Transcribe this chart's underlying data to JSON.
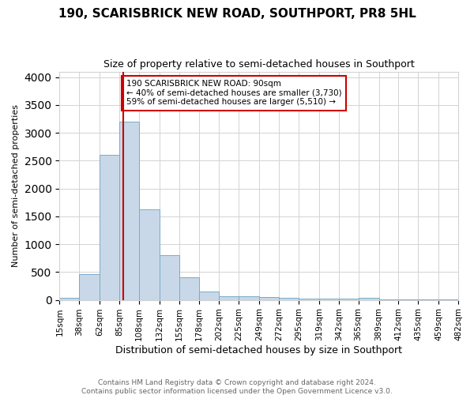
{
  "title": "190, SCARISBRICK NEW ROAD, SOUTHPORT, PR8 5HL",
  "subtitle": "Size of property relative to semi-detached houses in Southport",
  "xlabel": "Distribution of semi-detached houses by size in Southport",
  "ylabel": "Number of semi-detached properties",
  "footer1": "Contains HM Land Registry data © Crown copyright and database right 2024.",
  "footer2": "Contains public sector information licensed under the Open Government Licence v3.0.",
  "annotation_line1": "190 SCARISBRICK NEW ROAD: 90sqm",
  "annotation_line2": "← 40% of semi-detached houses are smaller (3,730)",
  "annotation_line3": "59% of semi-detached houses are larger (5,510) →",
  "property_size": 90,
  "bin_edges": [
    15,
    38,
    62,
    85,
    108,
    132,
    155,
    178,
    202,
    225,
    249,
    272,
    295,
    319,
    342,
    365,
    389,
    412,
    435,
    459,
    482
  ],
  "bin_labels": [
    "15sqm",
    "38sqm",
    "62sqm",
    "85sqm",
    "108sqm",
    "132sqm",
    "155sqm",
    "178sqm",
    "202sqm",
    "225sqm",
    "249sqm",
    "272sqm",
    "295sqm",
    "319sqm",
    "342sqm",
    "365sqm",
    "389sqm",
    "412sqm",
    "435sqm",
    "459sqm",
    "482sqm"
  ],
  "counts": [
    30,
    460,
    2600,
    3200,
    1620,
    800,
    400,
    155,
    70,
    65,
    50,
    30,
    28,
    20,
    20,
    35,
    10,
    4,
    3,
    2
  ],
  "bar_color": "#c8d8e8",
  "bar_edge_color": "#7aaac8",
  "red_line_color": "#cc0000",
  "annotation_box_edgecolor": "#cc0000",
  "ylim": [
    0,
    4100
  ],
  "yticks": [
    0,
    500,
    1000,
    1500,
    2000,
    2500,
    3000,
    3500,
    4000
  ]
}
